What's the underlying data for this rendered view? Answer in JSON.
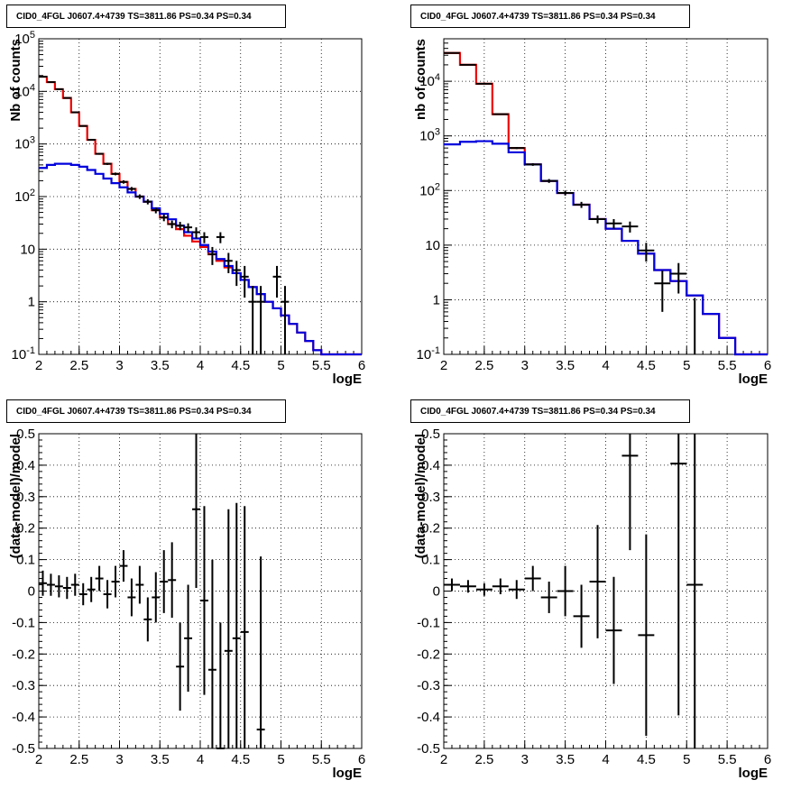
{
  "panels": [
    {
      "title": "CID0_4FGL J0607.4+4739 TS=3811.86 PS=0.34 PS=0.34"
    },
    {
      "title": "CID0_4FGL J0607.4+4739 TS=3811.86 PS=0.34 PS=0.34"
    },
    {
      "title": "CID0_4FGL J0607.4+4739 TS=3811.86 PS=0.34 PS=0.34"
    },
    {
      "title": "CID0_4FGL J0607.4+4739 TS=3811.86 PS=0.34 PS=0.34"
    }
  ],
  "chart_data": [
    {
      "type": "line",
      "title": "CID0_4FGL J0607.4+4739 TS=3811.86 PS=0.34 PS=0.34",
      "xlabel": "logE",
      "ylabel": "Nb of counts",
      "xlim": [
        2,
        6
      ],
      "ylim": [
        0.1,
        100000
      ],
      "yscale": "log",
      "grid": true,
      "xticks": [
        "2",
        "2.5",
        "3",
        "3.5",
        "4",
        "4.5",
        "5",
        "5.5",
        "6"
      ],
      "yticks": [
        "10^-1",
        "1",
        "10",
        "10^2",
        "10^3",
        "10^4",
        "10^5"
      ],
      "bin_width": 0.1,
      "series": [
        {
          "color": "#ee0000",
          "kind": "step",
          "x": [
            2.0,
            2.1,
            2.2,
            2.3,
            2.4,
            2.5,
            2.6,
            2.7,
            2.8,
            2.9,
            3.0,
            3.1,
            3.2,
            3.3,
            3.4,
            3.5,
            3.6,
            3.7,
            3.8,
            3.9,
            4.0,
            4.1,
            4.2,
            4.3,
            4.4,
            4.5,
            4.6,
            4.7,
            4.8,
            4.9,
            5.0,
            5.1,
            5.2,
            5.3,
            5.4,
            5.5,
            5.6,
            5.7,
            5.8,
            5.9
          ],
          "values": [
            19000,
            15000,
            11000,
            7500,
            4000,
            2200,
            1200,
            650,
            420,
            270,
            190,
            140,
            100,
            80,
            55,
            40,
            30,
            24,
            18,
            14,
            11,
            8,
            6,
            4.5,
            3.5,
            2.6,
            1.9,
            1.4,
            1.0,
            0.75,
            0.55,
            0.38,
            0.26,
            0.18,
            0.12,
            0.1,
            0.1,
            0.1,
            0.1,
            0.1
          ]
        },
        {
          "color": "#0000dd",
          "kind": "step",
          "x": [
            2.0,
            2.1,
            2.2,
            2.3,
            2.4,
            2.5,
            2.6,
            2.7,
            2.8,
            2.9,
            3.0,
            3.1,
            3.2,
            3.3,
            3.4,
            3.5,
            3.6,
            3.7,
            3.8,
            3.9,
            4.0,
            4.1,
            4.2,
            4.3,
            4.4,
            4.5,
            4.6,
            4.7,
            4.8,
            4.9,
            5.0,
            5.1,
            5.2,
            5.3,
            5.4,
            5.5,
            5.6,
            5.7,
            5.8,
            5.9
          ],
          "values": [
            350,
            400,
            420,
            420,
            400,
            370,
            320,
            270,
            220,
            180,
            150,
            120,
            100,
            80,
            60,
            47,
            37,
            28,
            21,
            16,
            12,
            9,
            6.5,
            4.8,
            3.5,
            2.6,
            1.9,
            1.4,
            1.0,
            0.75,
            0.55,
            0.38,
            0.26,
            0.18,
            0.12,
            0.1,
            0.1,
            0.1,
            0.1,
            0.1
          ]
        },
        {
          "color": "#000000",
          "kind": "points",
          "x": [
            2.05,
            2.15,
            2.25,
            2.35,
            2.45,
            2.55,
            2.65,
            2.75,
            2.85,
            2.95,
            3.05,
            3.15,
            3.25,
            3.35,
            3.45,
            3.55,
            3.65,
            3.75,
            3.85,
            3.95,
            4.05,
            4.15,
            4.25,
            4.35,
            4.45,
            4.55,
            4.65,
            4.75,
            4.95,
            5.05
          ],
          "values": [
            19000,
            15000,
            11000,
            7500,
            4000,
            2200,
            1200,
            650,
            420,
            270,
            190,
            140,
            100,
            80,
            55,
            40,
            30,
            28,
            26,
            21,
            17,
            8,
            17,
            6,
            4,
            3,
            1,
            1,
            3,
            1
          ],
          "err": [
            140,
            120,
            105,
            87,
            63,
            47,
            35,
            25,
            20,
            16,
            14,
            12,
            10,
            9,
            7,
            6,
            5,
            5,
            5,
            5,
            4,
            3,
            4,
            2.5,
            2,
            1.8,
            1,
            1,
            1.8,
            1
          ]
        }
      ]
    },
    {
      "type": "line",
      "title": "CID0_4FGL J0607.4+4739 TS=3811.86 PS=0.34 PS=0.34",
      "xlabel": "logE",
      "ylabel": "nb of counts",
      "xlim": [
        2,
        6
      ],
      "ylim": [
        0.1,
        60000
      ],
      "yscale": "log",
      "grid": true,
      "xticks": [
        "2",
        "2.5",
        "3",
        "3.5",
        "4",
        "4.5",
        "5",
        "5.5",
        "6"
      ],
      "yticks": [
        "10^-1",
        "1",
        "10",
        "10^2",
        "10^3",
        "10^4"
      ],
      "bin_width": 0.2,
      "series": [
        {
          "color": "#ee0000",
          "kind": "step",
          "x": [
            2.0,
            2.2,
            2.4,
            2.6,
            2.8,
            3.0,
            3.2,
            3.4,
            3.6,
            3.8,
            4.0,
            4.2,
            4.4,
            4.6,
            4.8,
            5.0,
            5.2,
            5.4,
            5.6,
            5.8
          ],
          "values": [
            33000,
            20000,
            9000,
            2500,
            600,
            300,
            150,
            90,
            55,
            30,
            20,
            12,
            7,
            3.5,
            2.2,
            1.2,
            0.55,
            0.2,
            0.1,
            0.1
          ]
        },
        {
          "color": "#0000dd",
          "kind": "step",
          "x": [
            2.0,
            2.2,
            2.4,
            2.6,
            2.8,
            3.0,
            3.2,
            3.4,
            3.6,
            3.8,
            4.0,
            4.2,
            4.4,
            4.6,
            4.8,
            5.0,
            5.2,
            5.4,
            5.6,
            5.8
          ],
          "values": [
            700,
            780,
            800,
            720,
            500,
            300,
            150,
            90,
            55,
            30,
            20,
            12,
            7,
            3.5,
            2.2,
            1.2,
            0.55,
            0.2,
            0.1,
            0.1
          ]
        },
        {
          "color": "#000000",
          "kind": "points",
          "x": [
            2.1,
            2.3,
            2.5,
            2.7,
            2.9,
            3.1,
            3.3,
            3.5,
            3.7,
            3.9,
            4.1,
            4.3,
            4.5,
            4.7,
            4.9,
            5.1
          ],
          "values": [
            33000,
            20000,
            9000,
            2500,
            600,
            300,
            150,
            90,
            55,
            30,
            25,
            22,
            8,
            2,
            3,
            0.08
          ],
          "err": [
            180,
            140,
            95,
            50,
            25,
            17,
            12,
            9,
            7,
            5,
            5,
            5,
            3,
            1.4,
            1.7,
            1
          ]
        }
      ]
    },
    {
      "type": "scatter",
      "title": "CID0_4FGL J0607.4+4739 TS=3811.86 PS=0.34 PS=0.34",
      "xlabel": "logE",
      "ylabel": "(data-model)/model",
      "xlim": [
        2,
        6
      ],
      "ylim": [
        -0.5,
        0.5
      ],
      "grid": true,
      "xticks": [
        "2",
        "2.5",
        "3",
        "3.5",
        "4",
        "4.5",
        "5",
        "5.5",
        "6"
      ],
      "yticks": [
        "-0.5",
        "-0.4",
        "-0.3",
        "-0.2",
        "-0.1",
        "0",
        "0.1",
        "0.2",
        "0.3",
        "0.4",
        "0.5"
      ],
      "bin_width": 0.1,
      "series": [
        {
          "color": "#000000",
          "kind": "points",
          "x": [
            2.05,
            2.15,
            2.25,
            2.35,
            2.45,
            2.55,
            2.65,
            2.75,
            2.85,
            2.95,
            3.05,
            3.15,
            3.25,
            3.35,
            3.45,
            3.55,
            3.65,
            3.75,
            3.85,
            3.95,
            4.05,
            4.15,
            4.25,
            4.35,
            4.45,
            4.55,
            4.75
          ],
          "values": [
            0.025,
            0.02,
            0.015,
            0.01,
            0.02,
            -0.01,
            0.005,
            0.04,
            -0.01,
            0.03,
            0.08,
            -0.02,
            0.02,
            -0.09,
            -0.02,
            0.03,
            0.035,
            -0.24,
            -0.15,
            0.26,
            -0.03,
            -0.25,
            -0.5,
            -0.19,
            -0.15,
            -0.13,
            -0.44
          ],
          "err": [
            0.04,
            0.035,
            0.035,
            0.035,
            0.035,
            0.035,
            0.04,
            0.04,
            0.045,
            0.05,
            0.05,
            0.06,
            0.06,
            0.07,
            0.08,
            0.1,
            0.12,
            0.14,
            0.17,
            0.25,
            0.3,
            0.35,
            0.4,
            0.45,
            0.43,
            0.4,
            0.55
          ]
        }
      ]
    },
    {
      "type": "scatter",
      "title": "CID0_4FGL J0607.4+4739 TS=3811.86 PS=0.34 PS=0.34",
      "xlabel": "logE",
      "ylabel": "(data-model)/model",
      "xlim": [
        2,
        6
      ],
      "ylim": [
        -0.5,
        0.5
      ],
      "grid": true,
      "xticks": [
        "2",
        "2.5",
        "3",
        "3.5",
        "4",
        "4.5",
        "5",
        "5.5",
        "6"
      ],
      "yticks": [
        "-0.5",
        "-0.4",
        "-0.3",
        "-0.2",
        "-0.1",
        "0",
        "0.1",
        "0.2",
        "0.3",
        "0.4",
        "0.5"
      ],
      "bin_width": 0.2,
      "series": [
        {
          "color": "#000000",
          "kind": "points",
          "x": [
            2.1,
            2.3,
            2.5,
            2.7,
            2.9,
            3.1,
            3.3,
            3.5,
            3.7,
            3.9,
            4.1,
            4.3,
            4.5,
            4.9,
            5.1
          ],
          "values": [
            0.02,
            0.015,
            0.005,
            0.015,
            0.005,
            0.04,
            -0.02,
            0.0,
            -0.08,
            0.03,
            -0.125,
            0.43,
            -0.14,
            0.405,
            0.02
          ],
          "err": [
            0.02,
            0.02,
            0.02,
            0.025,
            0.03,
            0.04,
            0.05,
            0.08,
            0.1,
            0.18,
            0.17,
            0.3,
            0.32,
            0.8,
            0.9
          ]
        }
      ]
    }
  ]
}
